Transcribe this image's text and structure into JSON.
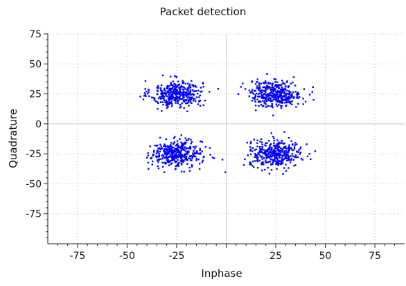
{
  "chart_data": {
    "type": "scatter",
    "title": "Packet detection",
    "xlabel": "Inphase",
    "ylabel": "Quadrature",
    "xlim": [
      -90,
      90
    ],
    "ylim": [
      -100,
      75
    ],
    "xticks": [
      -75,
      -50,
      -25,
      0,
      25,
      50,
      75
    ],
    "yticks": [
      75,
      50,
      25,
      0,
      -25,
      -50,
      -75
    ],
    "grid": true,
    "marker_color": "#0000ff",
    "clusters": [
      {
        "center": [
          -25,
          25
        ],
        "count": 380,
        "spread": [
          6.5,
          5.5
        ]
      },
      {
        "center": [
          25,
          25
        ],
        "count": 380,
        "spread": [
          6.5,
          5.5
        ]
      },
      {
        "center": [
          -25,
          -25
        ],
        "count": 380,
        "spread": [
          6.5,
          5.5
        ]
      },
      {
        "center": [
          25,
          -25
        ],
        "count": 380,
        "spread": [
          6.5,
          5.5
        ]
      }
    ]
  }
}
